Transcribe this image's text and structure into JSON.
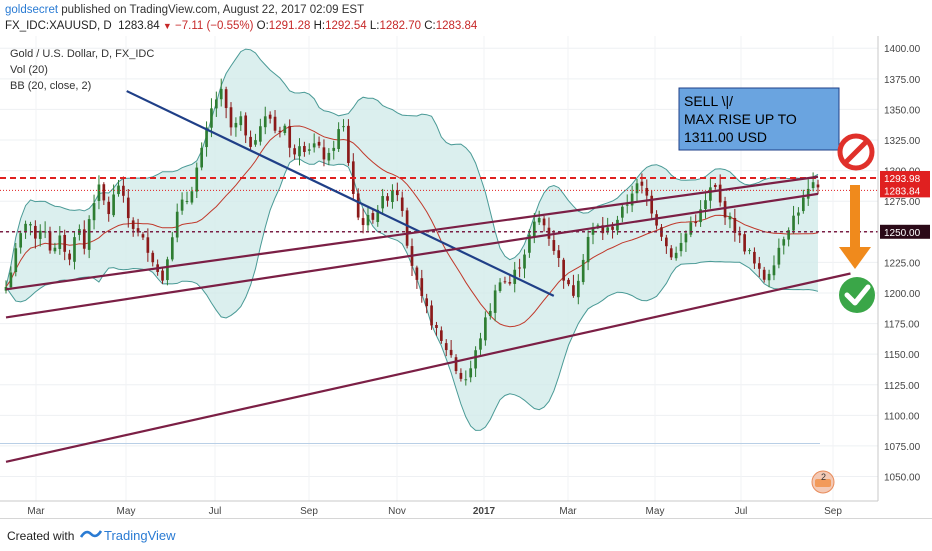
{
  "header": {
    "author": "goldsecret",
    "published": "published on TradingView.com, August 22, 2017 02:09 EST",
    "symbol": "FX_IDC:XAUUSD, D",
    "last": "1283.84",
    "change": "−7.11 (−0.55%)",
    "o_label": "O:",
    "o": "1291.28",
    "h_label": "H:",
    "h": "1292.54",
    "l_label": "L:",
    "l": "1282.70",
    "c_label": "C:",
    "c": "1283.84"
  },
  "legend": {
    "title": "Gold / U.S. Dollar, D, FX_IDC",
    "vol": "Vol (20)",
    "bb": "BB (20, close, 2)"
  },
  "annotation": {
    "lines": [
      "SELL \\|/",
      "MAX RISE UP TO",
      "1311.00 USD"
    ]
  },
  "footer": {
    "created": "Created with",
    "brand": "TradingView"
  },
  "colors": {
    "up": "#2e7d32",
    "down": "#8b1a1a",
    "bb_band": "#4a9a96",
    "bb_fill": "#cfeae8",
    "bb_basis": "#c0392b",
    "trend_blue": "#1f3f87",
    "channel": "#7b1f45",
    "dash_red": "#e02020",
    "dash_dark": "#7b1f45",
    "annot_bg": "#6aa4e0",
    "arrow_orange": "#f08a1c",
    "check_green": "#3aa648",
    "no_red": "#e0302a"
  },
  "chart_data": {
    "type": "candlestick",
    "y_ticks": [
      1050,
      1075,
      1100,
      1125,
      1150,
      1175,
      1200,
      1225,
      1250,
      1275,
      1300,
      1325,
      1350,
      1375,
      1400
    ],
    "ylim": [
      1030,
      1410
    ],
    "x_ticks": [
      "Mar",
      "May",
      "Jul",
      "Sep",
      "Nov",
      "2017",
      "Mar",
      "May",
      "Jul",
      "Sep"
    ],
    "price_labels": [
      {
        "value": 1293.98,
        "label": "1293.98",
        "style": "red"
      },
      {
        "value": 1283.84,
        "label": "1283.84",
        "style": "red-dotted"
      },
      {
        "value": 1250.0,
        "label": "1250.00",
        "style": "dark"
      }
    ],
    "horizontal_levels": [
      {
        "value": 1293.98,
        "style": "red-dashed"
      },
      {
        "value": 1283.84,
        "style": "red-dotted"
      },
      {
        "value": 1250.0,
        "style": "dark-dashed"
      },
      {
        "value": 1077,
        "style": "light-blue"
      }
    ],
    "keypoints": [
      [
        0,
        1205
      ],
      [
        10,
        1240
      ],
      [
        18,
        1265
      ],
      [
        24,
        1240
      ],
      [
        30,
        1260
      ],
      [
        38,
        1230
      ],
      [
        45,
        1245
      ],
      [
        52,
        1225
      ],
      [
        58,
        1260
      ],
      [
        64,
        1235
      ],
      [
        70,
        1272
      ],
      [
        76,
        1285
      ],
      [
        84,
        1265
      ],
      [
        92,
        1290
      ],
      [
        100,
        1262
      ],
      [
        108,
        1248
      ],
      [
        118,
        1235
      ],
      [
        124,
        1218
      ],
      [
        128,
        1210
      ],
      [
        134,
        1240
      ],
      [
        142,
        1270
      ],
      [
        150,
        1278
      ],
      [
        156,
        1300
      ],
      [
        162,
        1320
      ],
      [
        168,
        1348
      ],
      [
        172,
        1358
      ],
      [
        176,
        1365
      ],
      [
        180,
        1350
      ],
      [
        186,
        1330
      ],
      [
        192,
        1345
      ],
      [
        198,
        1318
      ],
      [
        204,
        1328
      ],
      [
        210,
        1340
      ],
      [
        216,
        1345
      ],
      [
        222,
        1330
      ],
      [
        228,
        1340
      ],
      [
        234,
        1310
      ],
      [
        240,
        1325
      ],
      [
        246,
        1318
      ],
      [
        252,
        1322
      ],
      [
        258,
        1315
      ],
      [
        264,
        1308
      ],
      [
        270,
        1325
      ],
      [
        276,
        1340
      ],
      [
        282,
        1300
      ],
      [
        288,
        1262
      ],
      [
        294,
        1258
      ],
      [
        300,
        1262
      ],
      [
        306,
        1272
      ],
      [
        312,
        1278
      ],
      [
        318,
        1287
      ],
      [
        324,
        1278
      ],
      [
        328,
        1248
      ],
      [
        332,
        1228
      ],
      [
        340,
        1195
      ],
      [
        348,
        1180
      ],
      [
        356,
        1160
      ],
      [
        364,
        1152
      ],
      [
        370,
        1135
      ],
      [
        376,
        1128
      ],
      [
        382,
        1140
      ],
      [
        390,
        1168
      ],
      [
        398,
        1190
      ],
      [
        406,
        1215
      ],
      [
        412,
        1205
      ],
      [
        418,
        1218
      ],
      [
        424,
        1230
      ],
      [
        430,
        1248
      ],
      [
        436,
        1262
      ],
      [
        442,
        1255
      ],
      [
        448,
        1240
      ],
      [
        454,
        1225
      ],
      [
        460,
        1205
      ],
      [
        466,
        1200
      ],
      [
        472,
        1225
      ],
      [
        478,
        1248
      ],
      [
        484,
        1255
      ],
      [
        490,
        1250
      ],
      [
        496,
        1252
      ],
      [
        502,
        1262
      ],
      [
        508,
        1270
      ],
      [
        514,
        1285
      ],
      [
        520,
        1288
      ],
      [
        526,
        1278
      ],
      [
        532,
        1262
      ],
      [
        538,
        1248
      ],
      [
        544,
        1232
      ],
      [
        550,
        1232
      ],
      [
        556,
        1245
      ],
      [
        562,
        1258
      ],
      [
        568,
        1262
      ],
      [
        574,
        1275
      ],
      [
        580,
        1290
      ],
      [
        586,
        1272
      ],
      [
        592,
        1262
      ],
      [
        598,
        1252
      ],
      [
        604,
        1240
      ],
      [
        610,
        1232
      ],
      [
        616,
        1218
      ],
      [
        622,
        1212
      ],
      [
        628,
        1222
      ],
      [
        634,
        1238
      ],
      [
        640,
        1252
      ],
      [
        646,
        1262
      ],
      [
        652,
        1272
      ],
      [
        658,
        1283
      ],
      [
        664,
        1288
      ],
      [
        666,
        1284
      ]
    ],
    "bar_count": 167,
    "annotation_lines": [
      {
        "from": [
          99,
          1365
        ],
        "to": [
          325,
          1257
        ],
        "ext": 1.55,
        "color": "trend_blue"
      },
      {
        "from": [
          0,
          1203
        ],
        "to": [
          666,
          1295
        ],
        "ext": 1.0,
        "color": "channel"
      },
      {
        "from": [
          0,
          1180
        ],
        "to": [
          666,
          1281
        ],
        "ext": 1.0,
        "color": "channel"
      },
      {
        "from": [
          0,
          1062
        ],
        "to": [
          666,
          1210
        ],
        "ext": 1.04,
        "color": "channel"
      }
    ]
  }
}
